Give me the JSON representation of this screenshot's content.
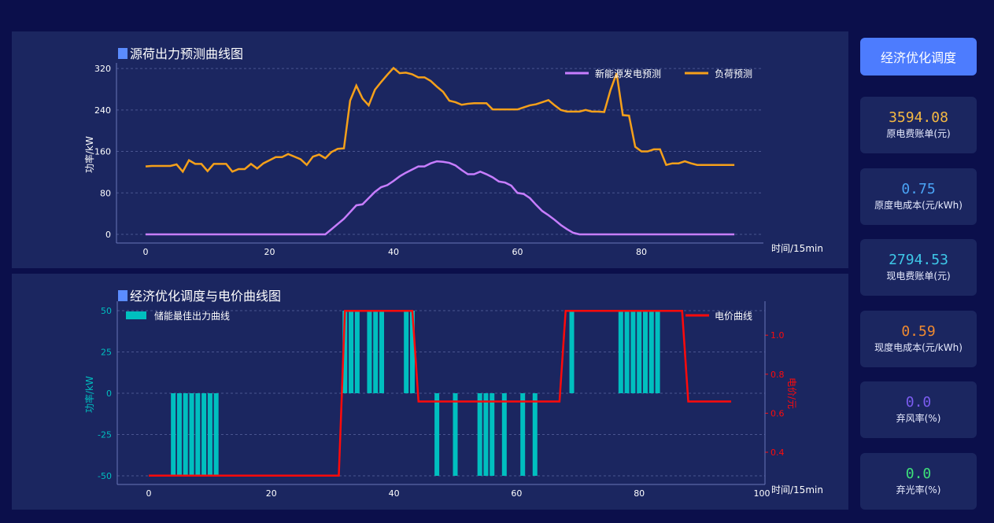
{
  "colors": {
    "background": "#0b0f4b",
    "panel": "#1b2660",
    "accent": "#4d7cfe",
    "renewable": "#c77dff",
    "load": "#f5a01a",
    "storage": "#00bfbf",
    "price": "#ff0a0a"
  },
  "sidebar": {
    "button_label": "经济优化调度",
    "cards": [
      {
        "value": "3594.08",
        "label": "原电费账单(元)",
        "color": "#f5b942"
      },
      {
        "value": "0.75",
        "label": "原度电成本(元/kWh)",
        "color": "#4aa3f5"
      },
      {
        "value": "2794.53",
        "label": "现电费账单(元)",
        "color": "#3ec8e8"
      },
      {
        "value": "0.59",
        "label": "现度电成本(元/kWh)",
        "color": "#f08a30"
      },
      {
        "value": "0.0",
        "label": "弃风率(%)",
        "color": "#7b5cf0"
      },
      {
        "value": "0.0",
        "label": "弃光率(%)",
        "color": "#3ee07a"
      }
    ]
  },
  "chart_data": [
    {
      "type": "line",
      "title": "源荷出力预测曲线图",
      "xlabel": "时间/15min",
      "ylabel": "功率/kW",
      "xlim": [
        -5,
        100
      ],
      "ylim": [
        -16,
        336
      ],
      "xticks": [
        0,
        20,
        40,
        60,
        80
      ],
      "yticks": [
        0,
        80,
        160,
        240,
        320
      ],
      "grid": "horizontal dashed",
      "legend": "top-right",
      "series": [
        {
          "name": "新能源发电预测",
          "color": "#c77dff",
          "values": [
            0,
            0,
            0,
            0,
            0,
            0,
            0,
            0,
            0,
            0,
            0,
            0,
            0,
            0,
            0,
            0,
            0,
            0,
            0,
            0,
            0,
            0,
            0,
            0,
            0,
            0,
            0,
            0,
            0,
            0,
            10,
            20,
            30,
            43,
            56,
            58,
            70,
            82,
            91,
            95,
            103,
            112,
            119,
            125,
            131,
            131,
            137,
            141,
            140,
            138,
            133,
            124,
            116,
            116,
            121,
            116,
            110,
            102,
            100,
            94,
            80,
            78,
            70,
            57,
            45,
            37,
            28,
            18,
            10,
            3,
            0,
            0,
            0,
            0,
            0,
            0,
            0,
            0,
            0,
            0,
            0,
            0,
            0,
            0,
            0,
            0,
            0,
            0,
            0,
            0,
            0,
            0,
            0,
            0,
            0,
            0
          ]
        },
        {
          "name": "负荷预测",
          "color": "#f5a01a",
          "values": [
            131,
            132,
            132,
            132,
            132,
            135,
            121,
            143,
            136,
            136,
            122,
            136,
            136,
            136,
            121,
            126,
            126,
            136,
            127,
            137,
            143,
            149,
            149,
            155,
            150,
            145,
            134,
            150,
            154,
            147,
            159,
            165,
            166,
            258,
            287,
            262,
            249,
            279,
            294,
            308,
            321,
            311,
            312,
            309,
            303,
            303,
            296,
            285,
            275,
            258,
            255,
            250,
            252,
            253,
            253,
            253,
            241,
            241,
            241,
            241,
            241,
            245,
            249,
            251,
            255,
            259,
            249,
            240,
            237,
            237,
            237,
            240,
            237,
            237,
            236,
            278,
            311,
            230,
            229,
            169,
            160,
            160,
            164,
            164,
            134,
            137,
            137,
            141,
            137,
            134,
            134,
            134,
            134,
            134,
            134,
            134
          ]
        }
      ]
    },
    {
      "type": "bar+line",
      "title": "经济优化调度与电价曲线图",
      "xlabel": "时间/15min",
      "ylabel": "功率/kW",
      "y2label": "电价/元",
      "xlim": [
        -5,
        100
      ],
      "ylim": [
        -55,
        55
      ],
      "y2lim": [
        0.24,
        1.17
      ],
      "xticks": [
        0,
        20,
        40,
        60,
        80,
        100
      ],
      "yticks": [
        50,
        25,
        0,
        -25,
        -50
      ],
      "y2ticks": [
        0.4,
        0.6,
        0.8,
        1.0
      ],
      "grid": "horizontal dashed",
      "legend": "top-left / top-right",
      "bars": {
        "name": "储能最佳出力曲线",
        "color": "#00bfbf",
        "points": [
          [
            4,
            -50
          ],
          [
            5,
            -50
          ],
          [
            6,
            -50
          ],
          [
            7,
            -50
          ],
          [
            8,
            -50
          ],
          [
            9,
            -50
          ],
          [
            10,
            -50
          ],
          [
            11,
            -50
          ],
          [
            32,
            50
          ],
          [
            33,
            50
          ],
          [
            34,
            50
          ],
          [
            36,
            50
          ],
          [
            37,
            50
          ],
          [
            38,
            50
          ],
          [
            42,
            50
          ],
          [
            43,
            50
          ],
          [
            47,
            -50
          ],
          [
            50,
            -50
          ],
          [
            54,
            -50
          ],
          [
            55,
            -50
          ],
          [
            56,
            -50
          ],
          [
            58,
            -50
          ],
          [
            61,
            -50
          ],
          [
            63,
            -50
          ],
          [
            69,
            50
          ],
          [
            77,
            50
          ],
          [
            78,
            50
          ],
          [
            79,
            50
          ],
          [
            80,
            50
          ],
          [
            81,
            50
          ],
          [
            82,
            50
          ],
          [
            83,
            50
          ]
        ]
      },
      "price": {
        "name": "电价曲线",
        "color": "#ff0a0a",
        "points": [
          [
            0,
            0.28
          ],
          [
            31,
            0.28
          ],
          [
            32,
            1.125
          ],
          [
            43,
            1.125
          ],
          [
            44,
            0.66
          ],
          [
            67,
            0.66
          ],
          [
            68,
            1.125
          ],
          [
            87,
            1.125
          ],
          [
            88,
            0.66
          ],
          [
            95,
            0.66
          ]
        ]
      }
    }
  ]
}
